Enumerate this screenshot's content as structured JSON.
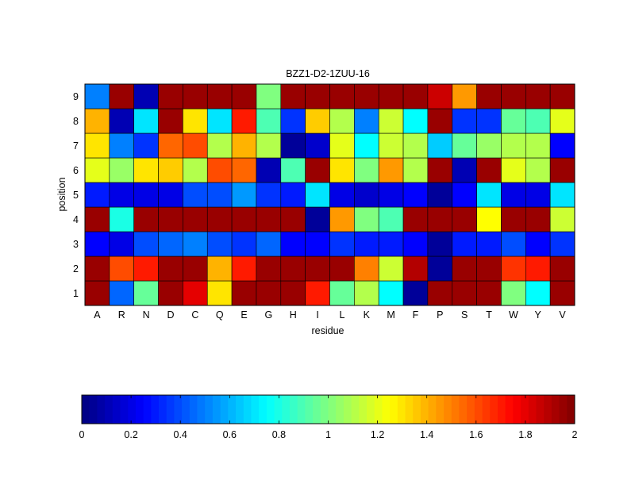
{
  "chart_data": {
    "type": "heatmap",
    "title": "BZZ1-D2-1ZUU-16",
    "xlabel": "residue",
    "ylabel": "position",
    "x_categories": [
      "A",
      "R",
      "N",
      "D",
      "C",
      "Q",
      "E",
      "G",
      "H",
      "I",
      "L",
      "K",
      "M",
      "F",
      "P",
      "S",
      "T",
      "W",
      "Y",
      "V"
    ],
    "y_categories": [
      "1",
      "2",
      "3",
      "4",
      "5",
      "6",
      "7",
      "8",
      "9"
    ],
    "values": [
      [
        1.95,
        0.45,
        0.95,
        1.95,
        1.8,
        1.3,
        1.95,
        1.95,
        1.95,
        1.7,
        0.95,
        1.1,
        0.75,
        0.05,
        1.95,
        1.95,
        1.95,
        1.0,
        0.75,
        1.95
      ],
      [
        1.95,
        1.6,
        1.7,
        1.95,
        1.95,
        1.4,
        1.7,
        1.95,
        1.95,
        1.95,
        1.95,
        1.5,
        1.15,
        1.9,
        0.05,
        1.95,
        1.95,
        1.65,
        1.7,
        1.95
      ],
      [
        0.25,
        0.2,
        0.4,
        0.45,
        0.5,
        0.4,
        0.35,
        0.45,
        0.25,
        0.25,
        0.35,
        0.3,
        0.3,
        0.25,
        0.05,
        0.3,
        0.3,
        0.4,
        0.25,
        0.35
      ],
      [
        1.95,
        0.8,
        1.95,
        1.95,
        1.95,
        1.95,
        1.95,
        1.95,
        1.95,
        0.05,
        1.45,
        1.0,
        0.9,
        1.95,
        1.95,
        1.95,
        1.25,
        1.95,
        1.95,
        1.15
      ],
      [
        0.3,
        0.2,
        0.2,
        0.2,
        0.4,
        0.4,
        0.55,
        0.35,
        0.3,
        0.7,
        0.2,
        0.15,
        0.2,
        0.25,
        0.05,
        0.25,
        0.7,
        0.2,
        0.2,
        0.7
      ],
      [
        1.2,
        1.05,
        1.3,
        1.35,
        1.1,
        1.6,
        1.55,
        0.1,
        0.9,
        1.95,
        1.3,
        1.0,
        1.45,
        1.1,
        1.95,
        0.1,
        1.95,
        1.2,
        1.1,
        1.95
      ],
      [
        1.3,
        0.5,
        0.35,
        1.55,
        1.6,
        1.1,
        1.4,
        1.1,
        0.05,
        0.15,
        1.2,
        0.75,
        1.15,
        1.1,
        0.65,
        0.95,
        1.05,
        1.1,
        1.1,
        0.25
      ],
      [
        1.4,
        0.1,
        0.7,
        1.95,
        1.3,
        0.7,
        1.7,
        0.9,
        0.35,
        1.35,
        1.1,
        0.5,
        1.15,
        0.75,
        1.95,
        0.35,
        0.35,
        0.95,
        0.9,
        1.2
      ],
      [
        0.5,
        1.95,
        0.1,
        1.95,
        1.95,
        1.95,
        1.95,
        1.0,
        1.95,
        1.95,
        1.95,
        1.95,
        1.95,
        1.95,
        1.85,
        1.45,
        1.95,
        1.95,
        1.95,
        1.95
      ]
    ],
    "colormap": "jet",
    "clim": [
      0,
      2
    ],
    "colorbar": {
      "location": "bottom",
      "ticks": [
        "0",
        "0.2",
        "0.4",
        "0.6",
        "0.8",
        "1",
        "1.2",
        "1.4",
        "1.6",
        "1.8",
        "2"
      ]
    }
  }
}
